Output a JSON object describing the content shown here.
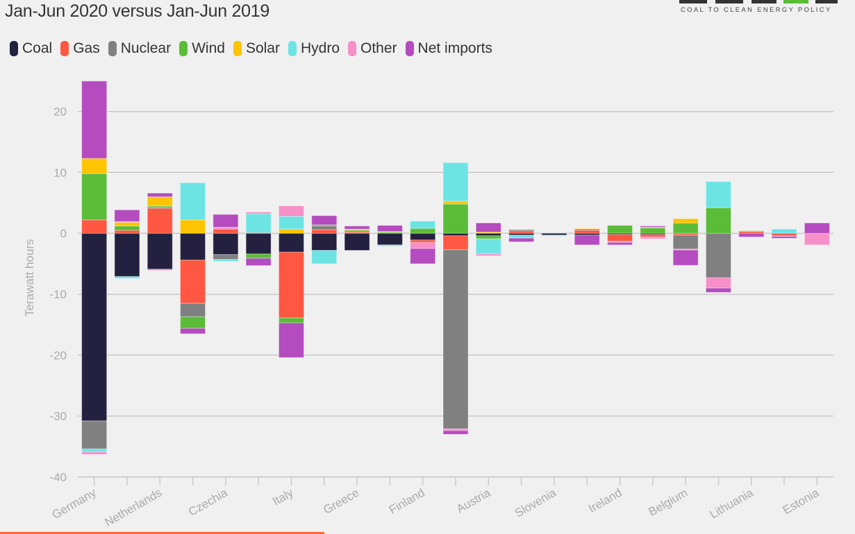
{
  "header": {
    "title": "Jan-Jun 2020 versus Jan-Jun 2019",
    "logo_text": "EMBER",
    "tagline": "COAL TO CLEAN ENERGY POLICY"
  },
  "chart_data": {
    "type": "bar",
    "stacked": true,
    "title": "Jan-Jun 2020 versus Jan-Jun 2019",
    "ylabel": "Terawatt hours",
    "xlabel": "",
    "ylim": [
      -40,
      25
    ],
    "yticks": [
      -40,
      -30,
      -20,
      -10,
      0,
      10,
      20
    ],
    "grid": true,
    "legend_position": "top-left",
    "categories": [
      "Germany",
      "",
      "Netherlands",
      "",
      "Czechia",
      "",
      "Italy",
      "",
      "Greece",
      "",
      "Finland",
      "",
      "Austria",
      "",
      "Slovenia",
      "",
      "Ireland",
      "",
      "Belgium",
      "",
      "Lithuania",
      "",
      "Estonia"
    ],
    "series": [
      {
        "name": "Coal",
        "color": "#23213f",
        "values": [
          -30.8,
          -7.1,
          -5.9,
          -4.4,
          -3.5,
          -3.4,
          -3.1,
          -2.8,
          -2.8,
          -1.9,
          -1.1,
          -0.4,
          -0.4,
          -0.3,
          -0.3,
          -0.3,
          -0.2,
          -0.2,
          0,
          0,
          0,
          0,
          0
        ]
      },
      {
        "name": "Gas",
        "color": "#ff5742",
        "values": [
          2.2,
          0.5,
          4.1,
          -7.1,
          0.7,
          0.1,
          -10.8,
          0.6,
          0.2,
          0,
          -0.4,
          -2.3,
          0,
          0.4,
          0,
          0.5,
          -1.1,
          -0.4,
          -0.3,
          0,
          0.3,
          -0.4,
          0
        ]
      },
      {
        "name": "Nuclear",
        "color": "#808080",
        "values": [
          -4.6,
          0,
          0.2,
          -2.2,
          -0.8,
          0,
          0,
          0.6,
          0,
          0,
          0,
          -29.4,
          0,
          0.2,
          0,
          0.2,
          0,
          0,
          -2.3,
          -7.3,
          0,
          0,
          0
        ]
      },
      {
        "name": "Wind",
        "color": "#5bbc38",
        "values": [
          7.6,
          0.7,
          0.2,
          -1.9,
          0,
          -0.7,
          -0.8,
          0.2,
          0.3,
          0.2,
          0.8,
          4.8,
          -0.5,
          0,
          0,
          0,
          1.3,
          0.9,
          1.7,
          4.2,
          0.1,
          0,
          0
        ]
      },
      {
        "name": "Solar",
        "color": "#ffc400",
        "values": [
          2.5,
          0.6,
          1.5,
          2.2,
          0,
          0,
          0.7,
          0,
          0.2,
          0.1,
          0,
          0.5,
          0.2,
          0,
          0,
          0.1,
          0,
          0.1,
          0.7,
          0,
          0,
          0,
          0
        ]
      },
      {
        "name": "Hydro",
        "color": "#6ce4e4",
        "values": [
          -0.5,
          -0.3,
          0,
          6.1,
          -0.3,
          3.1,
          2.1,
          -2.2,
          0,
          -0.2,
          1.2,
          6.3,
          -2.5,
          -0.5,
          -0.1,
          0,
          0,
          0,
          0,
          4.3,
          0,
          0.7,
          0
        ]
      },
      {
        "name": "Other",
        "color": "#f78fc8",
        "values": [
          -0.4,
          0.15,
          -0.2,
          0,
          0.3,
          0.3,
          1.7,
          0,
          0,
          0,
          -1.0,
          -0.3,
          -0.3,
          0,
          0,
          0,
          -0.2,
          -0.3,
          -0.15,
          -1.7,
          0,
          -0.1,
          -1.9
        ]
      },
      {
        "name": "Net imports",
        "color": "#b44bbf",
        "values": [
          12.7,
          1.9,
          0.6,
          -0.9,
          2.1,
          -1.2,
          -5.7,
          1.5,
          0.5,
          1.0,
          -2.5,
          -0.6,
          1.5,
          -0.6,
          0,
          -1.6,
          -0.4,
          0.2,
          -2.5,
          -0.7,
          -0.6,
          -0.3,
          1.7
        ]
      }
    ]
  }
}
